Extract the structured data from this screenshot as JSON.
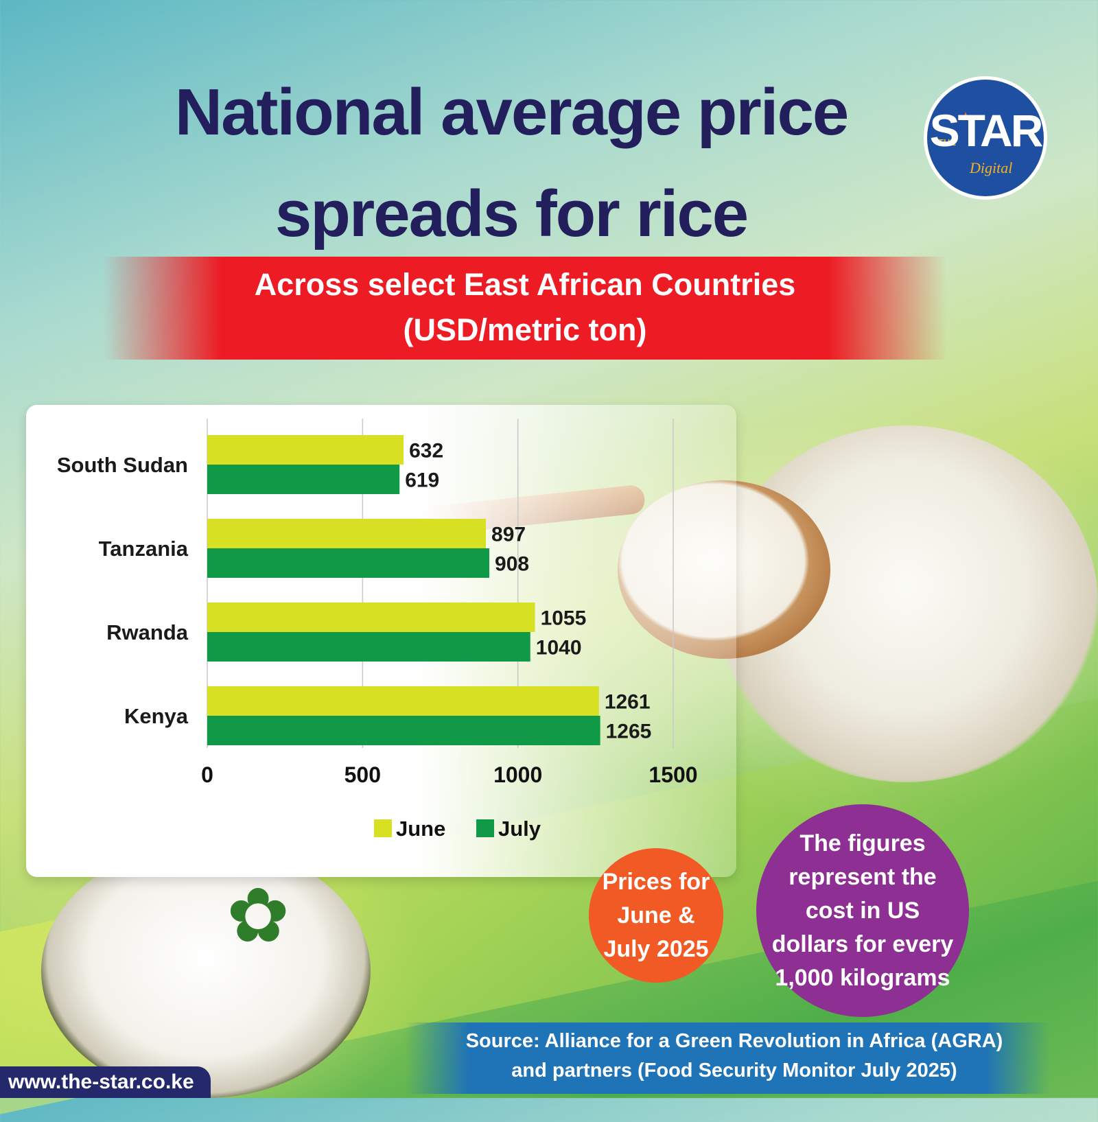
{
  "title": "National average price spreads for rice",
  "subtitle_line1": "Across select East African Countries",
  "subtitle_line2": "(USD/metric ton)",
  "logo": {
    "the": "THE",
    "star": "STAR",
    "digital": "Digital"
  },
  "circles": {
    "orange": "Prices for June & July 2025",
    "purple": "The figures represent the cost in US dollars for every 1,000 kilograms"
  },
  "source": "Source: Alliance for a Green Revolution in Africa (AGRA) and partners (Food Security Monitor July 2025)",
  "url": "www.the-star.co.ke",
  "colors": {
    "june": "#d7e022",
    "july": "#109a47",
    "title": "#221f5c",
    "band": "#ed1c24"
  },
  "chart_data": {
    "type": "bar",
    "orientation": "horizontal",
    "categories": [
      "South Sudan",
      "Tanzania",
      "Rwanda",
      "Kenya"
    ],
    "series": [
      {
        "name": "June",
        "values": [
          632,
          897,
          1055,
          1261
        ]
      },
      {
        "name": "July",
        "values": [
          619,
          908,
          1040,
          1265
        ]
      }
    ],
    "xlim": [
      0,
      1500
    ],
    "xticks": [
      0,
      500,
      1000,
      1500
    ],
    "grid": true,
    "legend": "bottom"
  }
}
